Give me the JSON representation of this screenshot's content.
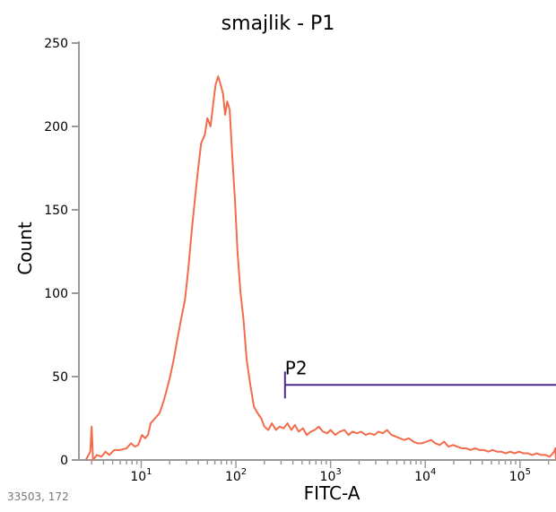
{
  "chart_data": {
    "type": "line",
    "title": "smajlik - P1",
    "xlabel": "FITC-A",
    "ylabel": "Count",
    "x_scale": "log",
    "xlim": [
      2.2,
      240000
    ],
    "ylim": [
      0,
      250
    ],
    "y_ticks": [
      {
        "value": 0,
        "label": "0"
      },
      {
        "value": 50,
        "label": "50"
      },
      {
        "value": 100,
        "label": "100"
      },
      {
        "value": 150,
        "label": "150"
      },
      {
        "value": 200,
        "label": "200"
      },
      {
        "value": 250,
        "label": "250"
      }
    ],
    "x_ticks": [
      {
        "value": 10,
        "base": "10",
        "exp": "1"
      },
      {
        "value": 100,
        "base": "10",
        "exp": "2"
      },
      {
        "value": 1000,
        "base": "10",
        "exp": "3"
      },
      {
        "value": 10000,
        "base": "10",
        "exp": "4"
      },
      {
        "value": 100000,
        "base": "10",
        "exp": "5"
      }
    ],
    "series": [
      {
        "color": "#f26b4a",
        "points": [
          [
            2.6,
            0
          ],
          [
            2.9,
            5
          ],
          [
            3.0,
            20
          ],
          [
            3.1,
            0
          ],
          [
            3.4,
            3
          ],
          [
            3.8,
            2
          ],
          [
            4.2,
            5
          ],
          [
            4.6,
            3
          ],
          [
            5.2,
            6
          ],
          [
            6.0,
            6
          ],
          [
            7.0,
            7
          ],
          [
            7.8,
            10
          ],
          [
            8.6,
            8
          ],
          [
            9.3,
            9
          ],
          [
            10.2,
            15
          ],
          [
            11.0,
            13
          ],
          [
            11.8,
            15
          ],
          [
            12.6,
            22
          ],
          [
            14.0,
            25
          ],
          [
            15.6,
            28
          ],
          [
            17.2,
            35
          ],
          [
            18.6,
            42
          ],
          [
            20.2,
            50
          ],
          [
            22.0,
            60
          ],
          [
            24.0,
            72
          ],
          [
            26.5,
            85
          ],
          [
            29.0,
            96
          ],
          [
            31.5,
            115
          ],
          [
            34.5,
            140
          ],
          [
            37.5,
            160
          ],
          [
            40.0,
            175
          ],
          [
            43.0,
            190
          ],
          [
            47.0,
            195
          ],
          [
            50.0,
            205
          ],
          [
            54.0,
            200
          ],
          [
            58.0,
            215
          ],
          [
            61.0,
            225
          ],
          [
            65.0,
            230
          ],
          [
            69.0,
            225
          ],
          [
            73.0,
            220
          ],
          [
            77.0,
            207
          ],
          [
            81.0,
            215
          ],
          [
            86.0,
            210
          ],
          [
            92.0,
            180
          ],
          [
            98.0,
            155
          ],
          [
            104.0,
            125
          ],
          [
            112.0,
            100
          ],
          [
            120.0,
            85
          ],
          [
            130.0,
            60
          ],
          [
            142.0,
            45
          ],
          [
            155.0,
            32
          ],
          [
            170.0,
            28
          ],
          [
            185.0,
            25
          ],
          [
            200.0,
            20
          ],
          [
            220.0,
            18
          ],
          [
            240.0,
            22
          ],
          [
            265.0,
            18
          ],
          [
            290.0,
            20
          ],
          [
            320.0,
            19
          ],
          [
            350.0,
            22
          ],
          [
            385.0,
            18
          ],
          [
            420.0,
            21
          ],
          [
            460.0,
            17
          ],
          [
            510.0,
            19
          ],
          [
            560.0,
            15
          ],
          [
            620.0,
            17
          ],
          [
            680.0,
            18
          ],
          [
            750.0,
            20
          ],
          [
            830.0,
            17
          ],
          [
            920.0,
            16
          ],
          [
            1000.0,
            18
          ],
          [
            1120.0,
            15
          ],
          [
            1250.0,
            17
          ],
          [
            1400.0,
            18
          ],
          [
            1550.0,
            15
          ],
          [
            1700.0,
            17
          ],
          [
            1900.0,
            16
          ],
          [
            2100.0,
            17
          ],
          [
            2350.0,
            15
          ],
          [
            2600.0,
            16
          ],
          [
            2900.0,
            15
          ],
          [
            3200.0,
            17
          ],
          [
            3550.0,
            16
          ],
          [
            3950.0,
            18
          ],
          [
            4400.0,
            15
          ],
          [
            4900.0,
            14
          ],
          [
            5400.0,
            13
          ],
          [
            6000.0,
            12
          ],
          [
            6700.0,
            13
          ],
          [
            7500.0,
            11
          ],
          [
            8300.0,
            10
          ],
          [
            9200.0,
            10
          ],
          [
            10300.0,
            11
          ],
          [
            11500.0,
            12
          ],
          [
            12800.0,
            10
          ],
          [
            14200.0,
            9
          ],
          [
            15800.0,
            11
          ],
          [
            17600.0,
            8
          ],
          [
            19600.0,
            9
          ],
          [
            21800.0,
            8
          ],
          [
            24300.0,
            7
          ],
          [
            27000.0,
            7
          ],
          [
            30000.0,
            6
          ],
          [
            33500.0,
            7
          ],
          [
            37300.0,
            6
          ],
          [
            41500.0,
            6
          ],
          [
            46200.0,
            5
          ],
          [
            51400.0,
            6
          ],
          [
            57200.0,
            5
          ],
          [
            63700.0,
            5
          ],
          [
            70900.0,
            4
          ],
          [
            78900.0,
            5
          ],
          [
            87800.0,
            4
          ],
          [
            97700.0,
            5
          ],
          [
            108700.0,
            4
          ],
          [
            121000.0,
            4
          ],
          [
            134600.0,
            3
          ],
          [
            149800.0,
            4
          ],
          [
            166700.0,
            3
          ],
          [
            185500.0,
            3
          ],
          [
            206400.0,
            2
          ],
          [
            229700.0,
            5
          ],
          [
            236000.0,
            7
          ],
          [
            240000.0,
            0
          ]
        ]
      }
    ],
    "gate": {
      "label": "P2",
      "x_start": 330,
      "x_end": 240000,
      "y": 45,
      "color": "#4b2a8c"
    },
    "footer_text": "33503, 172"
  }
}
